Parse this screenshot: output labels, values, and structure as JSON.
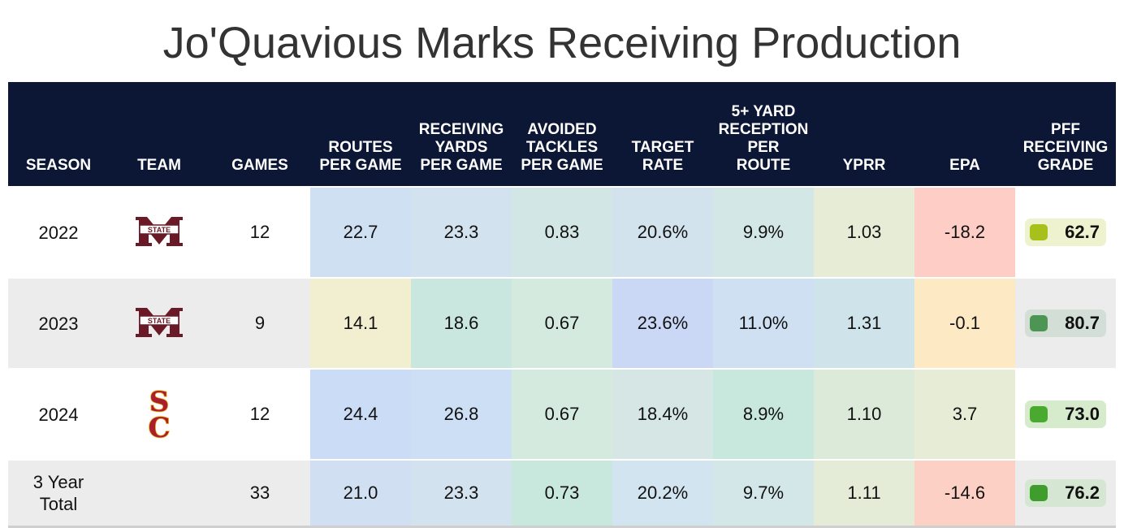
{
  "title": "Jo'Quavious Marks Receiving Production",
  "columns": [
    "SEASON",
    "TEAM",
    "GAMES",
    "ROUTES\nPER GAME",
    "RECEIVING\nYARDS\nPER GAME",
    "AVOIDED\nTACKLES\nPER GAME",
    "TARGET\nRATE",
    "5+ YARD\nRECEPTION\nPER\nROUTE",
    "YPRR",
    "EPA",
    "PFF\nRECEIVING\nGRADE"
  ],
  "rows": [
    {
      "season": "2022",
      "team_logo": "mississippi-state-logo",
      "games": "12",
      "routes_per_game": "22.7",
      "rec_yards_per_game": "23.3",
      "avoided_tackles_per_game": "0.83",
      "target_rate": "20.6%",
      "five_plus_per_route": "9.9%",
      "yprr": "1.03",
      "epa": "-18.2",
      "grade": "62.7",
      "colors": {
        "routes": "#cfe0f3",
        "yards": "#d3e2ef",
        "tackles": "#d2e7e5",
        "target": "#d3e3ee",
        "five": "#d2e7e6",
        "yprr": "#e6ecd6",
        "epa": "#fdcdc6",
        "grade_bg": "#eef2cf",
        "grade_dot": "#a6c11c"
      }
    },
    {
      "season": "2023",
      "team_logo": "mississippi-state-logo",
      "games": "9",
      "routes_per_game": "14.1",
      "rec_yards_per_game": "18.6",
      "avoided_tackles_per_game": "0.67",
      "target_rate": "23.6%",
      "five_plus_per_route": "11.0%",
      "yprr": "1.31",
      "epa": "-0.1",
      "grade": "80.7",
      "colors": {
        "routes": "#f1efd0",
        "yards": "#c9e7de",
        "tackles": "#d5eadf",
        "target": "#cad8f6",
        "five": "#cfe0f3",
        "yprr": "#cee4ea",
        "epa": "#fdeac4",
        "grade_bg": "#d3dfd6",
        "grade_dot": "#4c9553"
      }
    },
    {
      "season": "2024",
      "team_logo": "usc-logo",
      "games": "12",
      "routes_per_game": "24.4",
      "rec_yards_per_game": "26.8",
      "avoided_tackles_per_game": "0.67",
      "target_rate": "18.4%",
      "five_plus_per_route": "8.9%",
      "yprr": "1.10",
      "epa": "3.7",
      "grade": "73.0",
      "colors": {
        "routes": "#cadcf6",
        "yards": "#cddff5",
        "tackles": "#d5eadf",
        "target": "#d5e6e5",
        "five": "#c8e8de",
        "yprr": "#dcead9",
        "epa": "#e6ecd6",
        "grade_bg": "#d6ebcc",
        "grade_dot": "#4aaa2f"
      }
    },
    {
      "season": "3 Year\nTotal",
      "team_logo": "",
      "games": "33",
      "routes_per_game": "21.0",
      "rec_yards_per_game": "23.3",
      "avoided_tackles_per_game": "0.73",
      "target_rate": "20.2%",
      "five_plus_per_route": "9.7%",
      "yprr": "1.11",
      "epa": "-14.6",
      "grade": "76.2",
      "colors": {
        "routes": "#d0e0f2",
        "yards": "#d3e2ef",
        "tackles": "#c9e8dd",
        "target": "#d2e4ef",
        "five": "#d3e6e8",
        "yprr": "#e4ecd7",
        "epa": "#fdd0c5",
        "grade_bg": "#d5e6d2",
        "grade_dot": "#3f9d2e"
      }
    }
  ]
}
